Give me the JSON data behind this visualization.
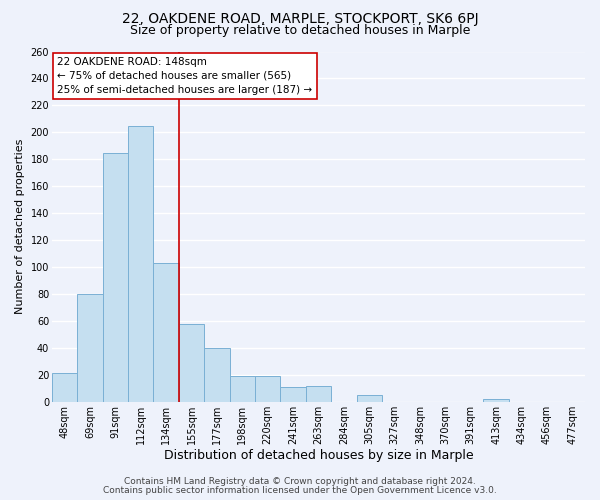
{
  "title1": "22, OAKDENE ROAD, MARPLE, STOCKPORT, SK6 6PJ",
  "title2": "Size of property relative to detached houses in Marple",
  "xlabel": "Distribution of detached houses by size in Marple",
  "ylabel": "Number of detached properties",
  "bar_labels": [
    "48sqm",
    "69sqm",
    "91sqm",
    "112sqm",
    "134sqm",
    "155sqm",
    "177sqm",
    "198sqm",
    "220sqm",
    "241sqm",
    "263sqm",
    "284sqm",
    "305sqm",
    "327sqm",
    "348sqm",
    "370sqm",
    "391sqm",
    "413sqm",
    "434sqm",
    "456sqm",
    "477sqm"
  ],
  "bar_heights": [
    21,
    80,
    185,
    205,
    103,
    58,
    40,
    19,
    19,
    11,
    12,
    0,
    5,
    0,
    0,
    0,
    0,
    2,
    0,
    0,
    0
  ],
  "bar_color": "#c5dff0",
  "bar_edge_color": "#7ab0d4",
  "vline_x_index": 4,
  "vline_color": "#cc0000",
  "annotation_title": "22 OAKDENE ROAD: 148sqm",
  "annotation_line1": "← 75% of detached houses are smaller (565)",
  "annotation_line2": "25% of semi-detached houses are larger (187) →",
  "annotation_box_color": "#ffffff",
  "annotation_box_edge": "#cc0000",
  "ylim": [
    0,
    260
  ],
  "yticks": [
    0,
    20,
    40,
    60,
    80,
    100,
    120,
    140,
    160,
    180,
    200,
    220,
    240,
    260
  ],
  "footer1": "Contains HM Land Registry data © Crown copyright and database right 2024.",
  "footer2": "Contains public sector information licensed under the Open Government Licence v3.0.",
  "background_color": "#eef2fb",
  "plot_background": "#eef2fb",
  "grid_color": "#ffffff",
  "title1_fontsize": 10,
  "title2_fontsize": 9,
  "xlabel_fontsize": 9,
  "ylabel_fontsize": 8,
  "tick_fontsize": 7,
  "annotation_fontsize": 7.5,
  "footer_fontsize": 6.5
}
